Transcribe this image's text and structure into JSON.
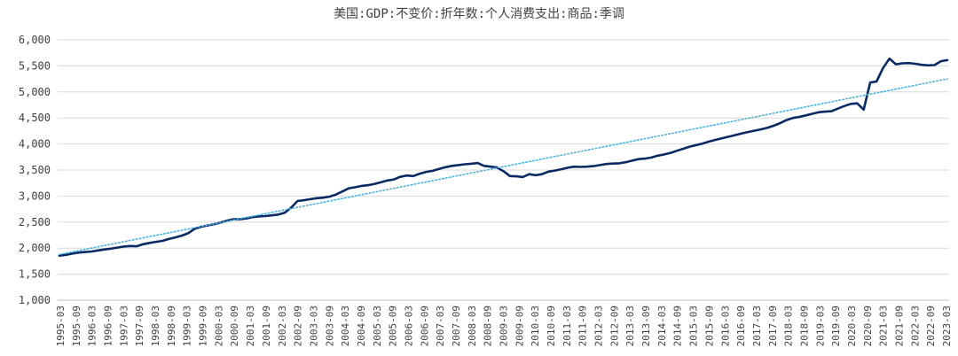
{
  "chart_data": {
    "type": "line",
    "title": "美国:GDP:不变价:折年数:个人消费支出:商品:季调",
    "ylim": [
      1000,
      6000
    ],
    "yticks": [
      1000,
      1500,
      2000,
      2500,
      3000,
      3500,
      4000,
      4500,
      5000,
      5500,
      6000
    ],
    "ytick_labels": [
      "1,000",
      "1,500",
      "2,000",
      "2,500",
      "3,000",
      "3,500",
      "4,000",
      "4,500",
      "5,000",
      "5,500",
      "6,000"
    ],
    "grid": true,
    "xtick_labels": [
      "1995-03",
      "1995-09",
      "1996-03",
      "1996-09",
      "1997-03",
      "1997-09",
      "1998-03",
      "1998-09",
      "1999-03",
      "1999-09",
      "2000-03",
      "2000-09",
      "2001-03",
      "2001-09",
      "2002-03",
      "2002-09",
      "2003-03",
      "2003-09",
      "2004-03",
      "2004-09",
      "2005-03",
      "2005-09",
      "2006-03",
      "2006-09",
      "2007-03",
      "2007-09",
      "2008-03",
      "2008-09",
      "2009-03",
      "2009-09",
      "2010-03",
      "2010-09",
      "2011-03",
      "2011-09",
      "2012-03",
      "2012-09",
      "2013-03",
      "2013-09",
      "2014-03",
      "2014-09",
      "2015-03",
      "2015-09",
      "2016-03",
      "2016-09",
      "2017-03",
      "2017-09",
      "2018-03",
      "2018-09",
      "2019-03",
      "2019-09",
      "2020-03",
      "2020-09",
      "2021-03",
      "2021-09",
      "2022-03",
      "2022-09",
      "2023-03"
    ],
    "series": [
      {
        "color": "#0b2a64",
        "style": "solid",
        "values": [
          1855,
          1870,
          1895,
          1915,
          1925,
          1935,
          1955,
          1975,
          1990,
          2010,
          2030,
          2040,
          2035,
          2075,
          2100,
          2120,
          2140,
          2175,
          2205,
          2240,
          2285,
          2370,
          2410,
          2435,
          2460,
          2490,
          2525,
          2555,
          2555,
          2570,
          2595,
          2610,
          2615,
          2630,
          2645,
          2680,
          2775,
          2905,
          2920,
          2940,
          2960,
          2970,
          2990,
          3030,
          3090,
          3150,
          3170,
          3195,
          3210,
          3235,
          3265,
          3300,
          3320,
          3370,
          3395,
          3385,
          3430,
          3465,
          3485,
          3520,
          3555,
          3580,
          3595,
          3610,
          3620,
          3635,
          3580,
          3565,
          3550,
          3480,
          3385,
          3380,
          3365,
          3420,
          3400,
          3420,
          3470,
          3490,
          3515,
          3545,
          3565,
          3560,
          3565,
          3575,
          3595,
          3615,
          3625,
          3630,
          3650,
          3680,
          3710,
          3720,
          3740,
          3775,
          3800,
          3830,
          3870,
          3910,
          3950,
          3980,
          4010,
          4050,
          4080,
          4110,
          4140,
          4170,
          4200,
          4230,
          4255,
          4280,
          4310,
          4350,
          4400,
          4460,
          4500,
          4520,
          4550,
          4580,
          4610,
          4620,
          4630,
          4680,
          4730,
          4770,
          4780,
          4660,
          5180,
          5200,
          5460,
          5640,
          5530,
          5550,
          5555,
          5540,
          5520,
          5510,
          5515,
          5590,
          5610
        ]
      },
      {
        "color": "#49b3e3",
        "style": "dotted",
        "trend": true,
        "values": [
          1880,
          5250
        ]
      }
    ]
  }
}
